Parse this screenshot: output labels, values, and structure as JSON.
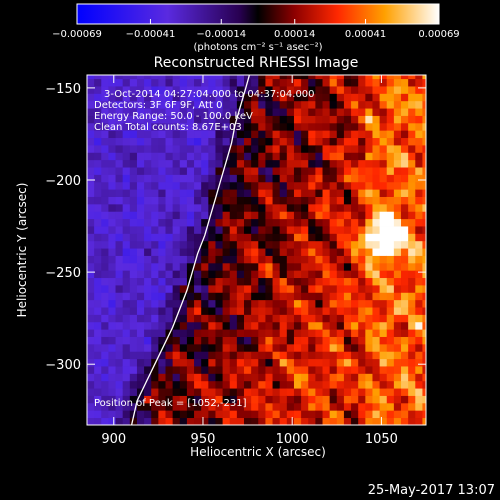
{
  "chart_data": {
    "type": "heatmap",
    "title": "Reconstructed RHESSI Image",
    "xlabel": "Heliocentric X (arcsec)",
    "ylabel": "Heliocentric Y (arcsec)",
    "xlim": [
      885,
      1075
    ],
    "ylim": [
      -333,
      -143
    ],
    "x_ticks": [
      900,
      950,
      1000,
      1050
    ],
    "y_ticks": [
      -150,
      -200,
      -250,
      -300
    ],
    "y_tick_labels": [
      "−150",
      "−200",
      "−250",
      "−300"
    ],
    "colorbar": {
      "range": [
        -0.00069,
        0.00069
      ],
      "ticks": [
        -0.00069,
        -0.00041,
        -0.00014,
        0.00014,
        0.00041,
        0.00069
      ],
      "tick_labels": [
        "−0.00069",
        "−0.00041",
        "−0.00014",
        "0.00014",
        "0.00041",
        "0.00069"
      ],
      "unit_label": "(photons cm⁻² s⁻¹ asec⁻²)"
    },
    "annotations": [
      "3-Oct-2014 04:27:04.000 to 04:37:04.000",
      "Detectors: 3F 6F 9F, Att 0",
      "Energy Range: 50.0 - 100.0 keV",
      "Clean    Total counts: 8.67E+03"
    ],
    "peak_label": "Position of Peak = [1052,-231]",
    "peak": [
      1052,
      -231
    ],
    "limb_curve": [
      [
        910,
        -333
      ],
      [
        913,
        -320
      ],
      [
        918,
        -310
      ],
      [
        923,
        -300
      ],
      [
        928,
        -290
      ],
      [
        933,
        -280
      ],
      [
        937,
        -270
      ],
      [
        941,
        -260
      ],
      [
        944,
        -250
      ],
      [
        947,
        -240
      ],
      [
        951,
        -230
      ],
      [
        954,
        -220
      ],
      [
        957,
        -210
      ],
      [
        960,
        -200
      ],
      [
        963,
        -190
      ],
      [
        966,
        -180
      ],
      [
        968,
        -170
      ],
      [
        971,
        -160
      ],
      [
        974,
        -150
      ],
      [
        976,
        -143
      ]
    ],
    "timestamp": "25-May-2017 13:07"
  }
}
